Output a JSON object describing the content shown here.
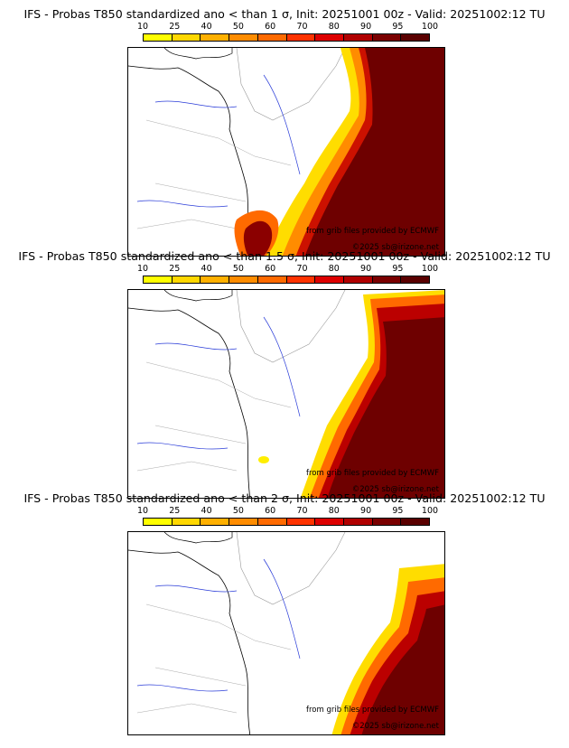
{
  "colors": {
    "scale": [
      "#ffff00",
      "#ffd700",
      "#ffb000",
      "#ff8c00",
      "#ff6a00",
      "#ff3300",
      "#dd0000",
      "#b00000",
      "#7a0000",
      "#5a0000"
    ]
  },
  "scale_ticks": [
    "10",
    "25",
    "40",
    "50",
    "60",
    "70",
    "80",
    "90",
    "95",
    "100"
  ],
  "credits": {
    "source": "from grib files provided by ECMWF",
    "copyright": "©2025 sb@irizone.net"
  },
  "panels": [
    {
      "title": "IFS - Probas T850  standardized ano < than 1 σ, Init: 20251001 00z - Valid: 20251002:12 TU"
    },
    {
      "title": "IFS - Probas T850  standardized ano < than 1.5 σ, Init: 20251001 00z - Valid: 20251002:12 TU"
    },
    {
      "title": "IFS - Probas T850  standardized ano < than 2 σ, Init: 20251001 00z - Valid: 20251002:12 TU"
    }
  ]
}
